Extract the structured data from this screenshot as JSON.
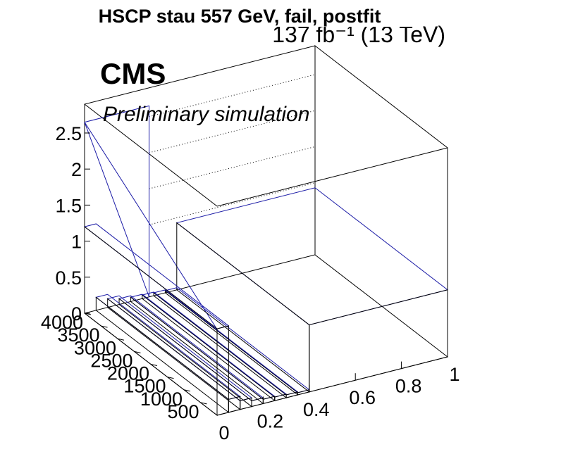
{
  "chart_data": {
    "type": "lego3d",
    "title": "HSCP stau 557 GeV, fail, postfit",
    "lumi_label": "137 fb⁻¹ (13 TeV)",
    "experiment_label": "CMS",
    "status_label": "Preliminary simulation",
    "x_axis": {
      "range": [
        0,
        1
      ],
      "ticks": [
        0,
        0.2,
        0.4,
        0.6,
        0.8,
        1
      ],
      "tick_labels": [
        "0",
        "0.2",
        "0.4",
        "0.6",
        "0.8",
        "1"
      ]
    },
    "y_axis": {
      "range": [
        0,
        4000
      ],
      "ticks": [
        500,
        1000,
        1500,
        2000,
        2500,
        3000,
        3500,
        4000
      ],
      "tick_labels": [
        "500",
        "1000",
        "1500",
        "2000",
        "2500",
        "3000",
        "3500",
        "4000"
      ]
    },
    "z_axis": {
      "range": [
        0,
        2.9
      ],
      "ticks": [
        0,
        0.5,
        1,
        1.5,
        2,
        2.5
      ],
      "tick_labels": [
        "0",
        "0.5",
        "1",
        "1.5",
        "2",
        "2.5"
      ]
    },
    "bars": [
      {
        "x0": 0.0,
        "x1": 0.05,
        "y0": 0,
        "y1": 4000,
        "value": 1.2
      },
      {
        "x0": 0.05,
        "x1": 0.1,
        "y0": 0,
        "y1": 4000,
        "value": 0.18
      },
      {
        "x0": 0.1,
        "x1": 0.15,
        "y0": 0,
        "y1": 4000,
        "value": 0.12
      },
      {
        "x0": 0.15,
        "x1": 0.2,
        "y0": 0,
        "y1": 4000,
        "value": 0.08
      },
      {
        "x0": 0.2,
        "x1": 0.25,
        "y0": 0,
        "y1": 4000,
        "value": 0.06
      },
      {
        "x0": 0.25,
        "x1": 0.3,
        "y0": 0,
        "y1": 4000,
        "value": 0.05
      },
      {
        "x0": 0.3,
        "x1": 0.35,
        "y0": 0,
        "y1": 4000,
        "value": 0.04
      },
      {
        "x0": 0.35,
        "x1": 0.4,
        "y0": 0,
        "y1": 4000,
        "value": 0.03
      },
      {
        "x0": 0.4,
        "x1": 1.0,
        "y0": 0,
        "y1": 4000,
        "value": 0.93
      }
    ],
    "back_band_value": 2.65,
    "grid": false
  }
}
